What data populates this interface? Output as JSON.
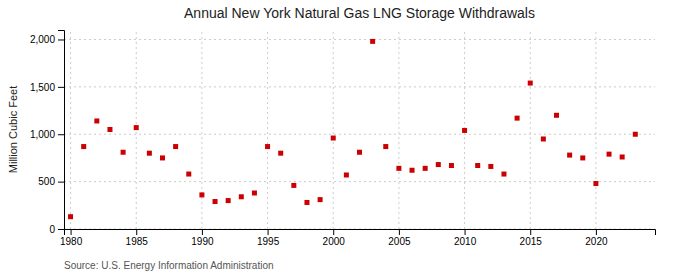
{
  "chart_data": {
    "type": "scatter",
    "title": "Annual New York Natural Gas LNG Storage Withdrawals",
    "ylabel": "Million Cubic Feet",
    "source": "Source: U.S. Energy Information Administration",
    "color": "#cc0000",
    "marker": "square",
    "grid": true,
    "xlim": [
      1979.5,
      2024.5
    ],
    "xticks": [
      1980,
      1985,
      1990,
      1995,
      2000,
      2005,
      2010,
      2015,
      2020
    ],
    "ylim": [
      0,
      2100
    ],
    "yticks": [
      0,
      500,
      {
        "value": 1000,
        "label": "1,000"
      },
      {
        "value": 1500,
        "label": "1,500"
      },
      {
        "value": 2000,
        "label": "2,000"
      }
    ],
    "x": [
      1980,
      1981,
      1982,
      1983,
      1984,
      1985,
      1986,
      1987,
      1988,
      1989,
      1990,
      1991,
      1992,
      1993,
      1994,
      1995,
      1996,
      1997,
      1998,
      1999,
      2000,
      2001,
      2002,
      2003,
      2004,
      2005,
      2006,
      2007,
      2008,
      2009,
      2010,
      2011,
      2012,
      2013,
      2014,
      2015,
      2016,
      2017,
      2018,
      2019,
      2020,
      2021,
      2022,
      2023
    ],
    "values": [
      130,
      870,
      1140,
      1050,
      810,
      1070,
      800,
      750,
      870,
      580,
      360,
      290,
      300,
      340,
      380,
      870,
      800,
      460,
      280,
      310,
      960,
      570,
      810,
      1980,
      870,
      640,
      620,
      640,
      680,
      670,
      1040,
      670,
      660,
      580,
      1170,
      1540,
      950,
      1200,
      780,
      750,
      480,
      790,
      760,
      1000
    ]
  }
}
